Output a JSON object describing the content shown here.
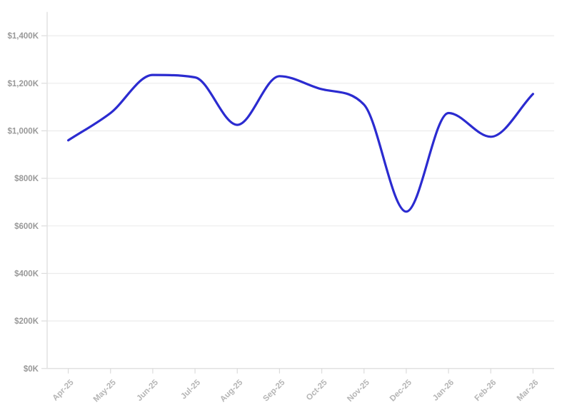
{
  "chart_data": {
    "type": "line",
    "title": "",
    "xlabel": "",
    "ylabel": "",
    "categories": [
      "Apr-25",
      "May-25",
      "Jun-25",
      "Jul-25",
      "Aug-25",
      "Sep-25",
      "Oct-25",
      "Nov-25",
      "Dec-25",
      "Jan-26",
      "Feb-26",
      "Mar-26"
    ],
    "values": [
      960,
      1075,
      1235,
      1225,
      1025,
      1230,
      1175,
      1110,
      660,
      1075,
      975,
      1155
    ],
    "value_unit": "K USD",
    "ylim": [
      0,
      1500
    ],
    "ytick_values": [
      0,
      200,
      400,
      600,
      800,
      1000,
      1200,
      1400
    ],
    "ytick_labels": [
      "$0K",
      "$200K",
      "$400K",
      "$600K",
      "$800K",
      "$1,000K",
      "$1,200K",
      "$1,400K"
    ],
    "x_label_rotation": -45,
    "grid": true,
    "legend": false,
    "smoothing": "monotone-cubic",
    "colors": {
      "line": "#2b2bd0",
      "background": "#ffffff",
      "grid_line": "#ebebeb",
      "axis_line": "#e2e2e2",
      "tick_mark": "#dcdcdc",
      "y_label": "#999999",
      "x_label": "#b5b5b5"
    }
  }
}
